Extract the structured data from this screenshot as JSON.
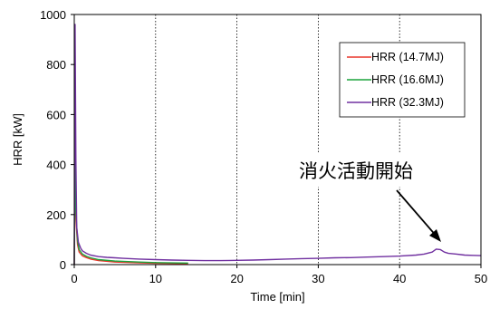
{
  "chart_data": {
    "type": "line",
    "xlabel": "Time [min]",
    "ylabel": "HRR [kW]",
    "xlim": [
      0,
      50
    ],
    "ylim": [
      0,
      1000
    ],
    "xticks": [
      0,
      10,
      20,
      30,
      40,
      50
    ],
    "yticks": [
      0,
      200,
      400,
      600,
      800,
      1000
    ],
    "grid": "vertical dotted",
    "legend_position": "top-right",
    "series": [
      {
        "name": "HRR (14.7MJ)",
        "color": "#e8352a",
        "x": [
          0,
          0.1,
          0.2,
          0.4,
          0.6,
          1,
          1.5,
          2,
          3,
          5,
          8,
          10,
          14
        ],
        "y": [
          0,
          520,
          180,
          80,
          50,
          35,
          28,
          22,
          16,
          10,
          7,
          5,
          4
        ]
      },
      {
        "name": "HRR (16.6MJ)",
        "color": "#1aa33c",
        "x": [
          0,
          0.1,
          0.2,
          0.4,
          0.6,
          1,
          1.5,
          2,
          3,
          5,
          8,
          10,
          14
        ],
        "y": [
          0,
          600,
          210,
          95,
          60,
          42,
          33,
          27,
          20,
          14,
          10,
          8,
          6
        ]
      },
      {
        "name": "HRR (32.3MJ)",
        "color": "#7030a0",
        "x": [
          0,
          0.1,
          0.2,
          0.3,
          0.5,
          0.8,
          1,
          1.5,
          2,
          3,
          4,
          5,
          6,
          8,
          10,
          12,
          14,
          16,
          18,
          20,
          22,
          24,
          26,
          28,
          30,
          32,
          34,
          36,
          38,
          40,
          42,
          43,
          44,
          44.5,
          45,
          45.5,
          46,
          47,
          48,
          49,
          50
        ],
        "y": [
          0,
          960,
          420,
          150,
          90,
          65,
          55,
          45,
          38,
          32,
          29,
          27,
          25,
          22,
          20,
          18,
          17,
          16,
          16,
          17,
          18,
          20,
          22,
          24,
          25,
          27,
          28,
          30,
          32,
          34,
          38,
          42,
          50,
          62,
          60,
          50,
          45,
          42,
          38,
          37,
          36
        ]
      }
    ],
    "annotations": [
      {
        "text": "消火活動開始",
        "x": 45,
        "y": 60
      }
    ]
  }
}
